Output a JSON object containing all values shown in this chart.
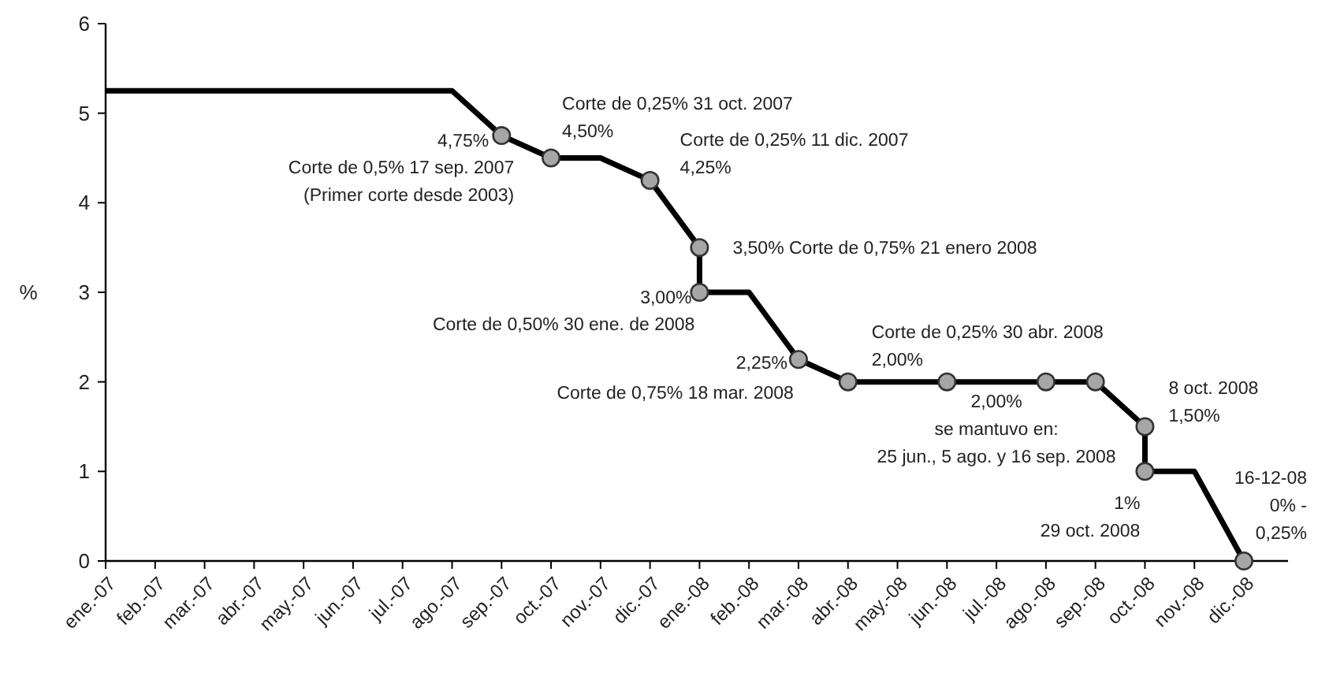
{
  "chart_data": {
    "type": "line",
    "ylabel": "%",
    "categories": [
      "ene.-07",
      "feb.-07",
      "mar.-07",
      "abr.-07",
      "may.-07",
      "jun.-07",
      "jul.-07",
      "ago.-07",
      "sep.-07",
      "oct.-07",
      "nov.-07",
      "dic.-07",
      "ene.-08",
      "feb.-08",
      "mar.-08",
      "abr.-08",
      "may.-08",
      "jun.-08",
      "jul.-08",
      "ago.-08",
      "sep.-08",
      "oct.-08",
      "nov.-08",
      "dic.-08"
    ],
    "ylim": [
      0,
      6
    ],
    "yticks": [
      0,
      1,
      2,
      3,
      4,
      5,
      6
    ],
    "grid": false,
    "series": [
      {
        "color": "#000000",
        "marker": "none",
        "line_style": "solid",
        "x": [
          "ene.-07",
          "feb.-07",
          "mar.-07",
          "abr.-07",
          "may.-07",
          "jun.-07",
          "jul.-07",
          "ago.-07",
          "sep.-07",
          "oct.-07",
          "nov.-07",
          "dic.-07",
          "ene.-08",
          "ene.-08",
          "feb.-08",
          "mar.-08",
          "abr.-08",
          "may.-08",
          "jun.-08",
          "jul.-08",
          "ago.-08",
          "sep.-08",
          "oct.-08",
          "oct.-08",
          "nov.-08",
          "dic.-08"
        ],
        "values": [
          5.25,
          5.25,
          5.25,
          5.25,
          5.25,
          5.25,
          5.25,
          5.25,
          4.75,
          4.5,
          4.5,
          4.25,
          3.5,
          3.0,
          3.0,
          2.25,
          2.0,
          2.0,
          2.0,
          2.0,
          2.0,
          2.0,
          1.5,
          1.0,
          1.0,
          0
        ]
      },
      {
        "type": "scatter",
        "color": "#a6a6a6",
        "marker": "circle",
        "x": [
          "sep.-07",
          "oct.-07",
          "dic.-07",
          "ene.-08",
          "ene.-08",
          "mar.-08",
          "abr.-08",
          "jun.-08",
          "ago.-08",
          "sep.-08",
          "oct.-08",
          "oct.-08",
          "dic.-08"
        ],
        "values": [
          4.75,
          4.5,
          4.25,
          3.5,
          3.0,
          2.25,
          2.0,
          2.0,
          2.0,
          2.0,
          1.5,
          1.0,
          0
        ]
      }
    ],
    "annotations": [
      {
        "text": "4,75%",
        "x": "sep.-07",
        "y": 4.75
      },
      {
        "text": "Corte de 0,5% 17 sep. 2007\n(Primer corte desde 2003)",
        "x": "sep.-07",
        "y": 4.75
      },
      {
        "text": "Corte de 0,25% 31 oct. 2007\n4,50%",
        "x": "oct.-07",
        "y": 4.5
      },
      {
        "text": "Corte de 0,25% 11 dic. 2007\n4,25%",
        "x": "dic.-07",
        "y": 4.25
      },
      {
        "text": "3,50%  Corte de 0,75% 21 enero 2008",
        "x": "ene.-08",
        "y": 3.5
      },
      {
        "text": "3,00%",
        "x": "ene.-08",
        "y": 3.0
      },
      {
        "text": "Corte de 0,50% 30 ene. de 2008",
        "x": "ene.-08",
        "y": 3.0
      },
      {
        "text": "Corte de 0,75% 18  mar. 2008",
        "x": "mar.-08",
        "y": 2.25
      },
      {
        "text": "2,25%",
        "x": "mar.-08",
        "y": 2.25
      },
      {
        "text": "Corte de 0,25%  30 abr. 2008\n2,00%",
        "x": "abr.-08",
        "y": 2.0
      },
      {
        "text": "2,00%\nse mantuvo en:\n25 jun., 5 ago. y 16 sep. 2008",
        "x": "jul.-08",
        "y": 2.0
      },
      {
        "text": "8 oct. 2008\n1,50%",
        "x": "oct.-08",
        "y": 1.5
      },
      {
        "text": "1%\n29 oct. 2008",
        "x": "oct.-08",
        "y": 1.0
      },
      {
        "text": "16-12-08\n0% -\n0,25%",
        "x": "dic.-08",
        "y": 0
      }
    ]
  }
}
